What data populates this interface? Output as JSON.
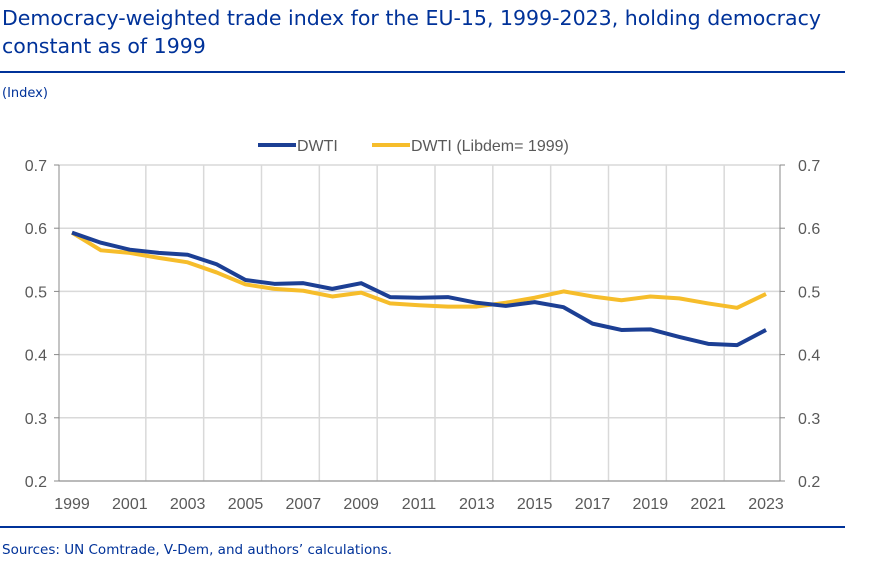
{
  "header": {
    "title": "Democracy-weighted trade index for the EU-15, 1999-2023, holding democracy constant as of 1999",
    "unit": "(Index)"
  },
  "footer": {
    "source": "Sources: UN Comtrade, V-Dem, and authors’ calculations."
  },
  "colors": {
    "accent": "#003299",
    "dwti": "#1c3f94",
    "dwti_libdem": "#f6bd2b"
  },
  "chart_data": {
    "type": "line",
    "title": "",
    "xlabel": "",
    "ylabel": "",
    "x": [
      1999,
      2000,
      2001,
      2002,
      2003,
      2004,
      2005,
      2006,
      2007,
      2008,
      2009,
      2010,
      2011,
      2012,
      2013,
      2014,
      2015,
      2016,
      2017,
      2018,
      2019,
      2020,
      2021,
      2022,
      2023
    ],
    "xticks": [
      "1999",
      "2001",
      "2003",
      "2005",
      "2007",
      "2009",
      "2011",
      "2013",
      "2015",
      "2017",
      "2019",
      "2021",
      "2023"
    ],
    "yticks": [
      "0.2",
      "0.3",
      "0.4",
      "0.5",
      "0.6",
      "0.7"
    ],
    "ylim": [
      0.2,
      0.7
    ],
    "grid": true,
    "legend": "top",
    "series": [
      {
        "name": "DWTI",
        "values": [
          0.593,
          0.577,
          0.566,
          0.561,
          0.558,
          0.543,
          0.518,
          0.512,
          0.513,
          0.504,
          0.513,
          0.491,
          0.49,
          0.491,
          0.482,
          0.477,
          0.483,
          0.475,
          0.449,
          0.439,
          0.44,
          0.428,
          0.417,
          0.415,
          0.439
        ]
      },
      {
        "name": "DWTI (Libdem= 1999)",
        "values": [
          0.593,
          0.565,
          0.561,
          0.553,
          0.546,
          0.53,
          0.511,
          0.504,
          0.501,
          0.492,
          0.498,
          0.481,
          0.478,
          0.476,
          0.476,
          0.482,
          0.49,
          0.5,
          0.492,
          0.486,
          0.492,
          0.489,
          0.481,
          0.474,
          0.496
        ]
      }
    ]
  }
}
